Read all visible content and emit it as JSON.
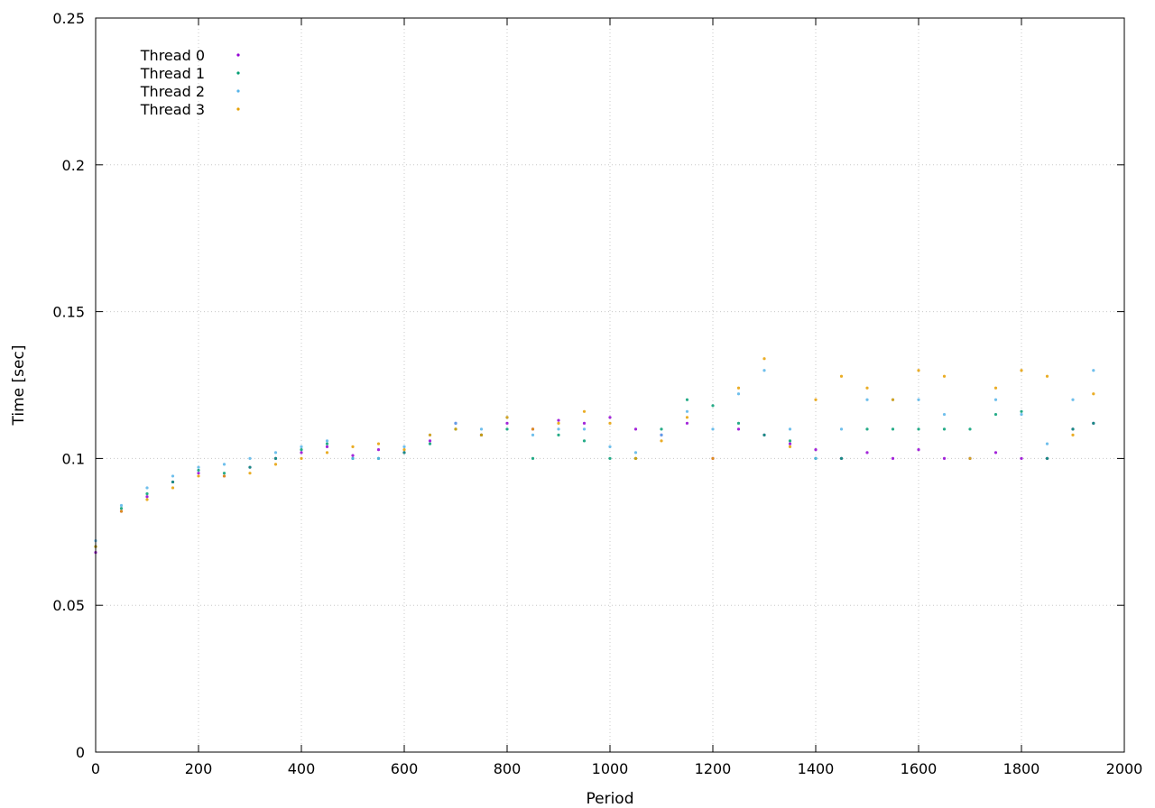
{
  "chart_data": {
    "type": "scatter",
    "title": "",
    "xlabel": "Period",
    "ylabel": "Time [sec]",
    "xlim": [
      0,
      2000
    ],
    "ylim": [
      0,
      0.25
    ],
    "x_ticks": [
      0,
      200,
      400,
      600,
      800,
      1000,
      1200,
      1400,
      1600,
      1800,
      2000
    ],
    "y_ticks": [
      0,
      0.05,
      0.1,
      0.15,
      0.2,
      0.25
    ],
    "x_tick_labels": [
      "0",
      "200",
      "400",
      "600",
      "800",
      "1000",
      "1200",
      "1400",
      "1600",
      "1800",
      "2000"
    ],
    "y_tick_labels": [
      "0",
      "0.05",
      "0.1",
      "0.15",
      "0.2",
      "0.25"
    ],
    "grid": true,
    "legend_position": "top-left",
    "series": [
      {
        "name": "Thread 0",
        "color": "#9400d3",
        "x": [
          0,
          50,
          100,
          150,
          200,
          250,
          300,
          350,
          400,
          450,
          500,
          550,
          600,
          650,
          700,
          750,
          800,
          850,
          900,
          950,
          1000,
          1050,
          1100,
          1150,
          1200,
          1250,
          1300,
          1350,
          1400,
          1450,
          1500,
          1550,
          1600,
          1650,
          1700,
          1750,
          1800,
          1850,
          1900,
          1940
        ],
        "y": [
          0.068,
          0.082,
          0.087,
          0.092,
          0.095,
          0.094,
          0.097,
          0.1,
          0.102,
          0.104,
          0.101,
          0.103,
          0.102,
          0.106,
          0.112,
          0.108,
          0.112,
          0.11,
          0.113,
          0.112,
          0.114,
          0.11,
          0.108,
          0.112,
          0.1,
          0.11,
          0.108,
          0.105,
          0.103,
          0.1,
          0.102,
          0.1,
          0.103,
          0.1,
          0.1,
          0.102,
          0.1,
          0.1,
          0.11,
          0.112
        ]
      },
      {
        "name": "Thread 1",
        "color": "#009e73",
        "x": [
          0,
          50,
          100,
          150,
          200,
          250,
          300,
          350,
          400,
          450,
          500,
          550,
          600,
          650,
          700,
          750,
          800,
          850,
          900,
          950,
          1000,
          1050,
          1100,
          1150,
          1200,
          1250,
          1300,
          1350,
          1400,
          1450,
          1500,
          1550,
          1600,
          1650,
          1700,
          1750,
          1800,
          1850,
          1900,
          1940
        ],
        "y": [
          0.07,
          0.083,
          0.088,
          0.092,
          0.096,
          0.095,
          0.097,
          0.1,
          0.103,
          0.105,
          0.1,
          0.1,
          0.102,
          0.105,
          0.11,
          0.108,
          0.11,
          0.1,
          0.108,
          0.106,
          0.1,
          0.1,
          0.11,
          0.12,
          0.118,
          0.112,
          0.108,
          0.106,
          0.1,
          0.1,
          0.11,
          0.11,
          0.11,
          0.11,
          0.11,
          0.115,
          0.116,
          0.1,
          0.11,
          0.112
        ]
      },
      {
        "name": "Thread 2",
        "color": "#56b4e9",
        "x": [
          0,
          50,
          100,
          150,
          200,
          250,
          300,
          350,
          400,
          450,
          500,
          550,
          600,
          650,
          700,
          750,
          800,
          850,
          900,
          950,
          1000,
          1050,
          1100,
          1150,
          1200,
          1250,
          1300,
          1350,
          1400,
          1450,
          1500,
          1550,
          1600,
          1650,
          1700,
          1750,
          1800,
          1850,
          1900,
          1940
        ],
        "y": [
          0.072,
          0.084,
          0.09,
          0.094,
          0.097,
          0.098,
          0.1,
          0.102,
          0.104,
          0.106,
          0.1,
          0.1,
          0.104,
          0.108,
          0.112,
          0.11,
          0.114,
          0.108,
          0.11,
          0.11,
          0.104,
          0.102,
          0.108,
          0.116,
          0.11,
          0.122,
          0.13,
          0.11,
          0.1,
          0.11,
          0.12,
          0.12,
          0.12,
          0.115,
          0.1,
          0.12,
          0.115,
          0.105,
          0.12,
          0.13
        ]
      },
      {
        "name": "Thread 3",
        "color": "#e69f00",
        "x": [
          0,
          50,
          100,
          150,
          200,
          250,
          300,
          350,
          400,
          450,
          500,
          550,
          600,
          650,
          700,
          750,
          800,
          850,
          900,
          950,
          1000,
          1050,
          1100,
          1150,
          1200,
          1250,
          1300,
          1350,
          1400,
          1450,
          1500,
          1550,
          1600,
          1650,
          1700,
          1750,
          1800,
          1850,
          1900,
          1940
        ],
        "y": [
          0.07,
          0.082,
          0.086,
          0.09,
          0.094,
          0.094,
          0.095,
          0.098,
          0.1,
          0.102,
          0.104,
          0.105,
          0.103,
          0.108,
          0.11,
          0.108,
          0.114,
          0.11,
          0.112,
          0.116,
          0.112,
          0.1,
          0.106,
          0.114,
          0.1,
          0.124,
          0.134,
          0.104,
          0.12,
          0.128,
          0.124,
          0.12,
          0.13,
          0.128,
          0.1,
          0.124,
          0.13,
          0.128,
          0.108,
          0.122
        ]
      }
    ]
  }
}
